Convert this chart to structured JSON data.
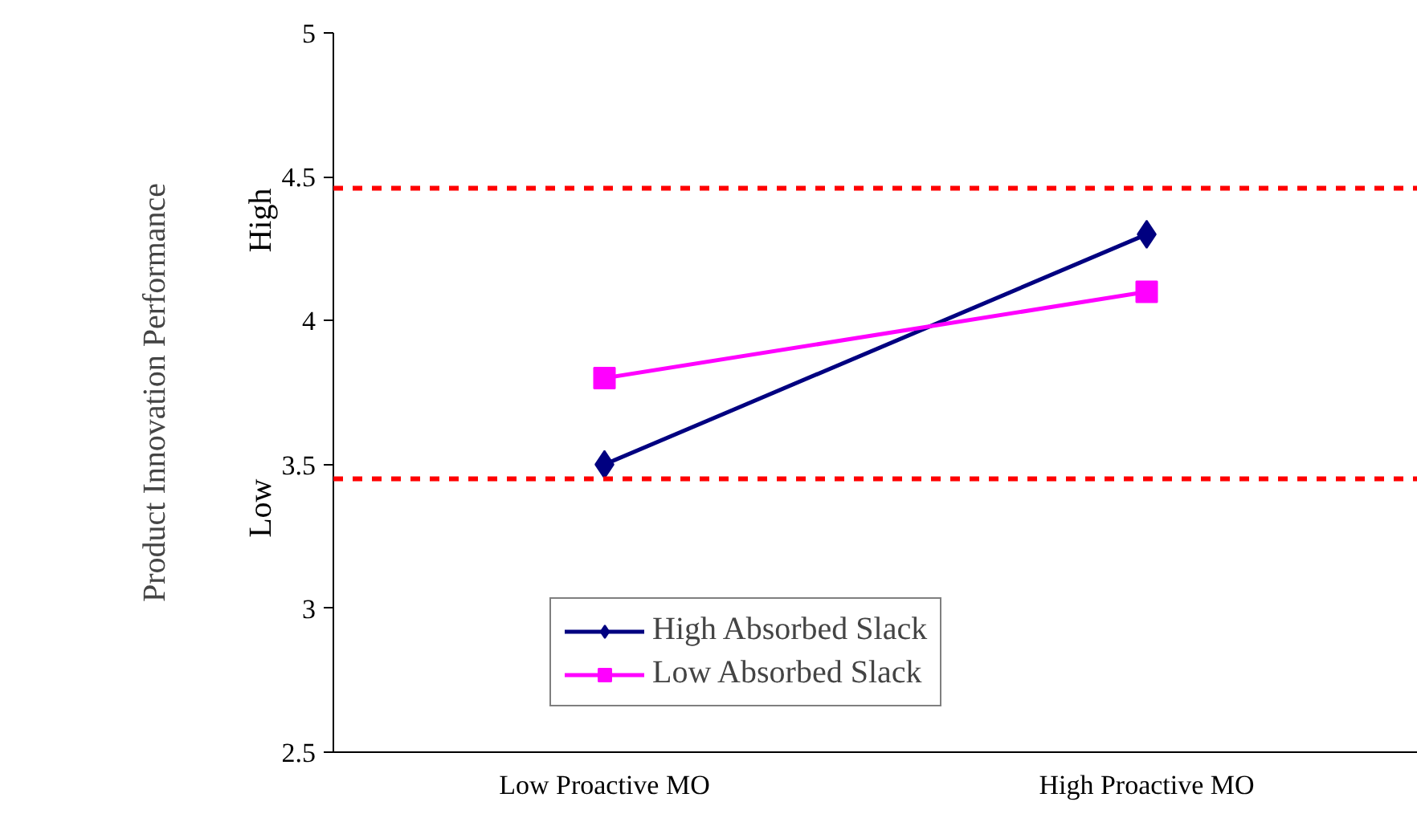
{
  "chart_data": {
    "type": "line",
    "ylabel": "Product Innovation Performance",
    "categories": [
      "Low Proactive MO",
      "High Proactive MO"
    ],
    "series": [
      {
        "name": "High Absorbed Slack",
        "color": "#000080",
        "values": [
          3.5,
          4.3
        ],
        "marker": "diamond"
      },
      {
        "name": "Low Absorbed Slack",
        "color": "#ff00ff",
        "values": [
          3.8,
          4.1
        ],
        "marker": "square"
      }
    ],
    "ylim": [
      2.5,
      5
    ],
    "yticks": [
      2.5,
      3,
      3.5,
      4,
      4.5,
      5
    ],
    "ref_lines": [
      {
        "axis": "y",
        "value": 4.46,
        "label": "High",
        "color": "#ff0000",
        "line_style": "dashed"
      },
      {
        "axis": "y",
        "value": 3.45,
        "label": "Low",
        "color": "#ff0000",
        "line_style": "dashed"
      }
    ],
    "grid": false,
    "legend": "bottom",
    "line_style": "solid"
  }
}
